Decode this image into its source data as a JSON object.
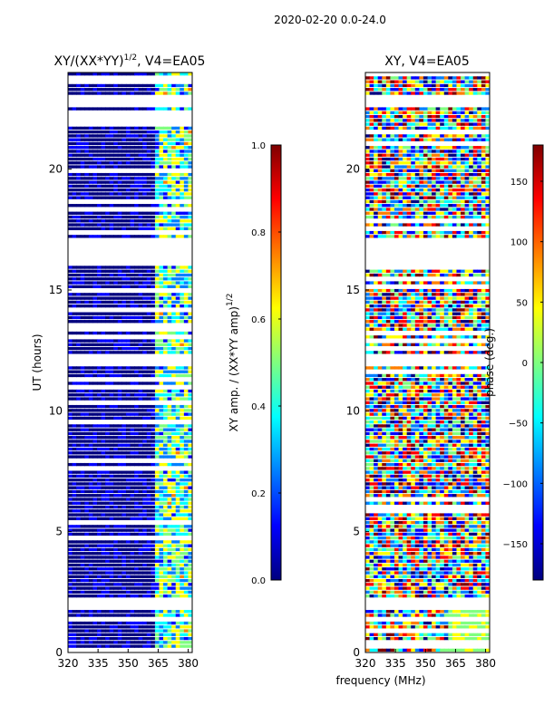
{
  "figure": {
    "suptitle": "2020-02-20 0.0-24.0",
    "xlabel": "frequency (MHz)"
  },
  "colors": {
    "jet": [
      "#00007f",
      "#0000ff",
      "#007fff",
      "#00ffff",
      "#7fff7f",
      "#ffff00",
      "#ff7f00",
      "#ff0000",
      "#7f0000"
    ]
  },
  "chart_data": [
    {
      "type": "heatmap",
      "title": "XY/(XX*YY)",
      "title_exponent": "1/2",
      "title_suffix": ", V4=EA05",
      "ylabel": "UT (hours)",
      "xlim": [
        320,
        382
      ],
      "ylim": [
        0,
        24
      ],
      "x_ticks": [
        320,
        335,
        350,
        365,
        380
      ],
      "y_ticks": [
        0,
        5,
        10,
        15,
        20
      ],
      "colorbar": {
        "label": "XY amp. / (XX*YY amp)",
        "label_exponent": "1/2",
        "range": [
          0.0,
          1.0
        ],
        "ticks": [
          "0.0",
          "0.2",
          "0.4",
          "0.6",
          "0.8",
          "1.0"
        ]
      }
    },
    {
      "type": "heatmap",
      "title": "XY, V4=EA05",
      "ylabel": "",
      "xlim": [
        320,
        382
      ],
      "ylim": [
        0,
        24
      ],
      "x_ticks": [
        320,
        335,
        350,
        365,
        380
      ],
      "y_ticks": [
        0,
        5,
        10,
        15,
        20
      ],
      "colorbar": {
        "label": "phase (deg.)",
        "range": [
          -180,
          180
        ],
        "ticks": [
          "−150",
          "−100",
          "−50",
          "0",
          "50",
          "100",
          "150"
        ]
      }
    }
  ]
}
